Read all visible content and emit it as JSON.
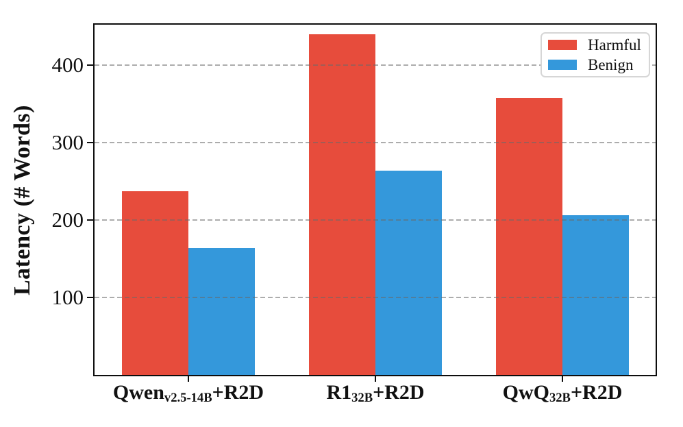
{
  "chart_data": {
    "type": "bar",
    "title": "",
    "xlabel": "",
    "ylabel": "Latency (# Words)",
    "ylim": [
      0,
      452
    ],
    "yticks": [
      100,
      200,
      300,
      400
    ],
    "grid": {
      "axis": "y",
      "style": "dashed",
      "color": "#b0b0b0",
      "drawn_over_bars": true
    },
    "legend": {
      "position": "upper right"
    },
    "categories": [
      {
        "plain": "Qwen_v2.5-14B+R2D",
        "segments": [
          {
            "text": "Qwen"
          },
          {
            "sub": "v2.5-14B"
          },
          {
            "text": "+R2D"
          }
        ]
      },
      {
        "plain": "R1_32B+R2D",
        "segments": [
          {
            "text": "R1"
          },
          {
            "sub": "32B"
          },
          {
            "text": "+R2D"
          }
        ]
      },
      {
        "plain": "QwQ_32B+R2D",
        "segments": [
          {
            "text": "QwQ"
          },
          {
            "sub": "32B"
          },
          {
            "text": "+R2D"
          }
        ]
      }
    ],
    "series": [
      {
        "name": "Harmful",
        "color": "#e74c3c",
        "values": [
          237,
          440,
          357
        ]
      },
      {
        "name": "Benign",
        "color": "#3498db",
        "values": [
          164,
          264,
          206
        ]
      }
    ],
    "colors": {
      "harmful": "#e74c3c",
      "benign": "#3498db",
      "spine": "#0d0d0d",
      "gridline": "#b0b0b0",
      "legend_border": "#d6d6d6",
      "background": "#ffffff"
    }
  }
}
